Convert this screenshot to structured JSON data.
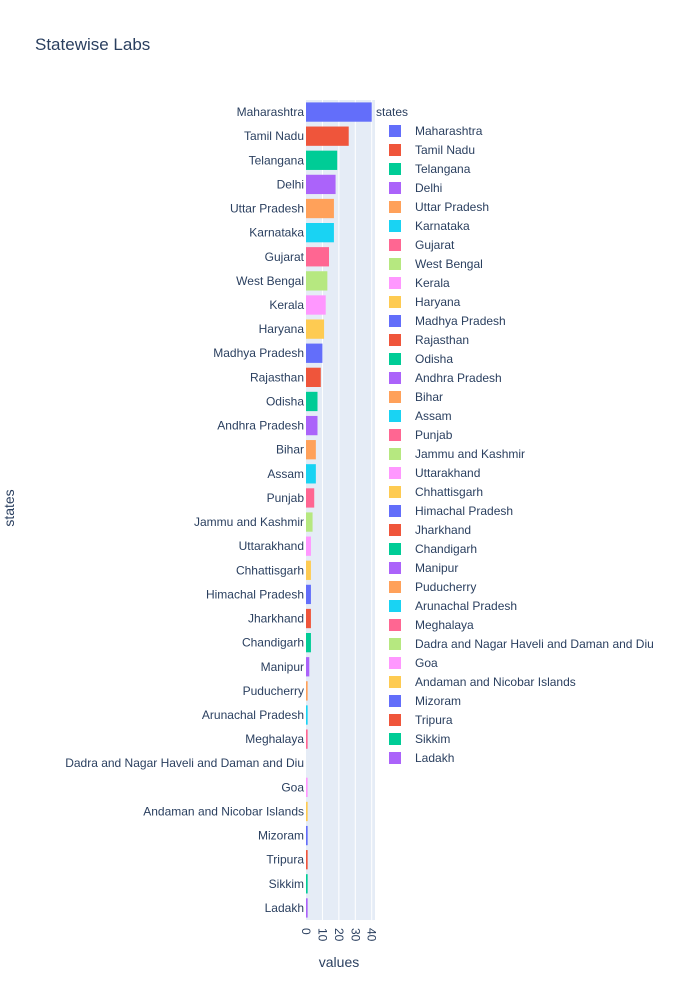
{
  "chart_data": {
    "type": "bar",
    "orientation": "horizontal",
    "title": "Statewise Labs",
    "xlabel": "values",
    "ylabel": "states",
    "legend_title": "states",
    "legend_position": "right",
    "xlim": [
      0,
      42
    ],
    "x_ticks": [
      0,
      10,
      20,
      30,
      40
    ],
    "grid": true,
    "categories": [
      "Maharashtra",
      "Tamil Nadu",
      "Telangana",
      "Delhi",
      "Uttar Pradesh",
      "Karnataka",
      "Gujarat",
      "West Bengal",
      "Kerala",
      "Haryana",
      "Madhya Pradesh",
      "Rajasthan",
      "Odisha",
      "Andhra Pradesh",
      "Bihar",
      "Assam",
      "Punjab",
      "Jammu and Kashmir",
      "Uttarakhand",
      "Chhattisgarh",
      "Himachal Pradesh",
      "Jharkhand",
      "Chandigarh",
      "Manipur",
      "Puducherry",
      "Arunachal Pradesh",
      "Meghalaya",
      "Dadra and Nagar Haveli and Daman and Diu",
      "Goa",
      "Andaman and Nicobar Islands",
      "Mizoram",
      "Tripura",
      "Sikkim",
      "Ladakh"
    ],
    "values": [
      40,
      26,
      19,
      18,
      17,
      17,
      14,
      13,
      12,
      11,
      10,
      9,
      7,
      7,
      6,
      6,
      5,
      4,
      3,
      3,
      3,
      3,
      3,
      2,
      1,
      1,
      1,
      0,
      1,
      1,
      1,
      1,
      1,
      1
    ],
    "colors": [
      "#636efa",
      "#EF553B",
      "#00cc96",
      "#ab63fa",
      "#FFA15A",
      "#19d3f3",
      "#FF6692",
      "#B6E880",
      "#FF97FF",
      "#FECB52",
      "#636efa",
      "#EF553B",
      "#00cc96",
      "#ab63fa",
      "#FFA15A",
      "#19d3f3",
      "#FF6692",
      "#B6E880",
      "#FF97FF",
      "#FECB52",
      "#636efa",
      "#EF553B",
      "#00cc96",
      "#ab63fa",
      "#FFA15A",
      "#19d3f3",
      "#FF6692",
      "#B6E880",
      "#FF97FF",
      "#FECB52",
      "#636efa",
      "#EF553B",
      "#00cc96",
      "#ab63fa"
    ],
    "plot_bg": "#e5ecf6",
    "gridline_color": "#ffffff",
    "text_color": "#2a3f5f"
  }
}
